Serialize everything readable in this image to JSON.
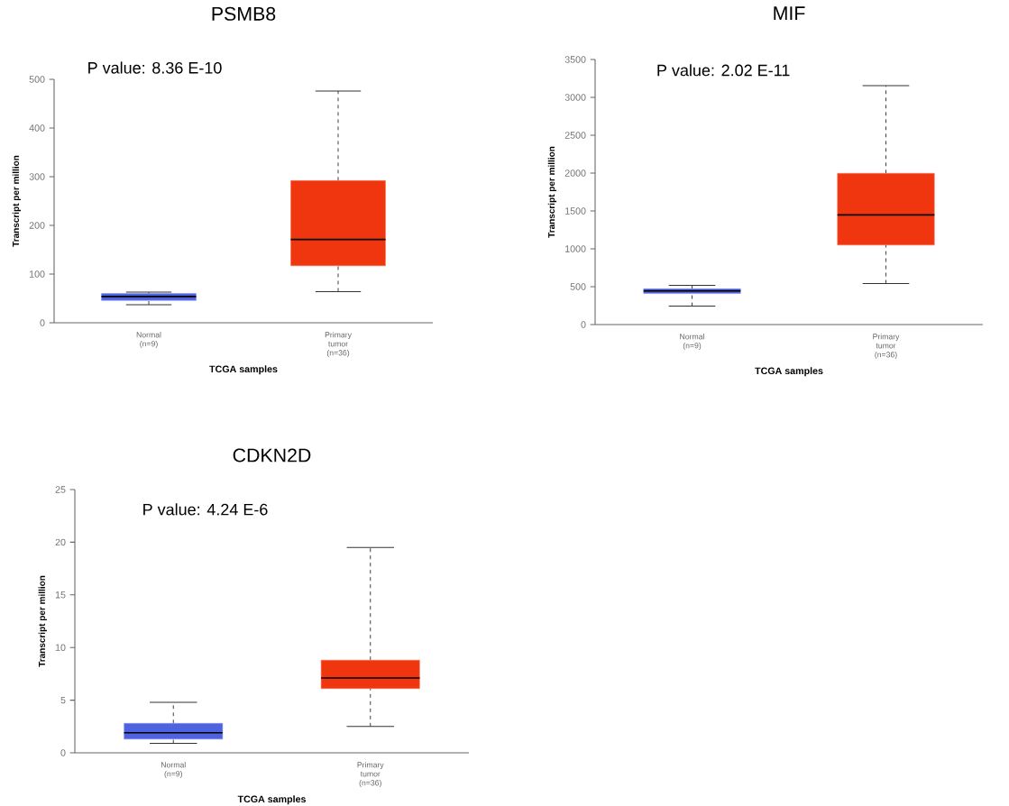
{
  "chart_data": [
    {
      "type": "box",
      "title": "PSMB8",
      "xlabel": "TCGA samples",
      "ylabel": "Transcript per million",
      "annotations": [
        "P value: 8.36 E-10"
      ],
      "categories": [
        "Normal (n=9)",
        "Primary tumor (n=36)"
      ],
      "colors": [
        "#4f63e0",
        "#f0360f"
      ],
      "boxes": [
        {
          "low": 37,
          "q1": 46,
          "median": 54,
          "q3": 60,
          "high": 63
        },
        {
          "low": 64,
          "q1": 117,
          "median": 171,
          "q3": 292,
          "high": 476
        }
      ],
      "ylim": [
        0,
        500
      ],
      "yticks": [
        0,
        100,
        200,
        300,
        400,
        500
      ]
    },
    {
      "type": "box",
      "title": "MIF",
      "xlabel": "TCGA samples",
      "ylabel": "Transcript per million",
      "annotations": [
        "P value: 2.02 E-11"
      ],
      "categories": [
        "Normal (n=9)",
        "Primary tumor (n=36)"
      ],
      "colors": [
        "#4f63e0",
        "#f0360f"
      ],
      "boxes": [
        {
          "low": 243,
          "q1": 410,
          "median": 445,
          "q3": 473,
          "high": 517
        },
        {
          "low": 541,
          "q1": 1050,
          "median": 1448,
          "q3": 1997,
          "high": 3154
        }
      ],
      "ylim": [
        0,
        3500
      ],
      "yticks": [
        0,
        500,
        1000,
        1500,
        2000,
        2500,
        3000,
        3500
      ]
    },
    {
      "type": "box",
      "title": "CDKN2D",
      "xlabel": "TCGA samples",
      "ylabel": "Transcript per million",
      "annotations": [
        "P value: 4.24 E-6"
      ],
      "categories": [
        "Normal (n=9)",
        "Primary tumor (n=36)"
      ],
      "colors": [
        "#4f63e0",
        "#f0360f"
      ],
      "boxes": [
        {
          "low": 0.9,
          "q1": 1.3,
          "median": 1.9,
          "q3": 2.8,
          "high": 4.8
        },
        {
          "low": 2.5,
          "q1": 6.1,
          "median": 7.1,
          "q3": 8.8,
          "high": 19.5
        }
      ],
      "ylim": [
        0,
        25
      ],
      "yticks": [
        0,
        5,
        10,
        15,
        20,
        25
      ]
    }
  ]
}
